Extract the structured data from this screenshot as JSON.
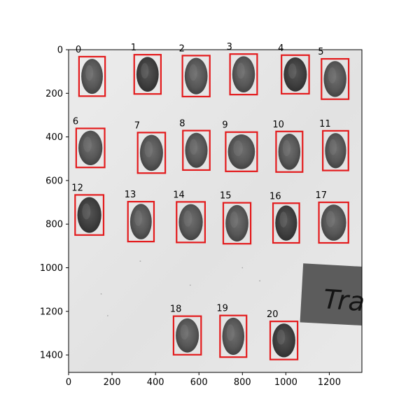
{
  "chart_data": {
    "type": "image-annotation",
    "xlim": [
      0,
      1350
    ],
    "ylim": [
      1480,
      0
    ],
    "x_ticks": [
      0,
      200,
      400,
      600,
      800,
      1000,
      1200
    ],
    "y_ticks": [
      0,
      200,
      400,
      600,
      800,
      1000,
      1200,
      1400
    ],
    "x_tick_labels": [
      "0",
      "200",
      "400",
      "600",
      "800",
      "1000",
      "1200"
    ],
    "y_tick_labels": [
      "0",
      "200",
      "400",
      "600",
      "800",
      "1000",
      "1200",
      "1400"
    ],
    "box_color": "#e31a1c",
    "boxes": [
      {
        "label": "0",
        "x0": 48,
        "y0": 32,
        "x1": 168,
        "y1": 213
      },
      {
        "label": "1",
        "x0": 302,
        "y0": 23,
        "x1": 425,
        "y1": 203
      },
      {
        "label": "2",
        "x0": 524,
        "y0": 27,
        "x1": 650,
        "y1": 215
      },
      {
        "label": "3",
        "x0": 743,
        "y0": 20,
        "x1": 868,
        "y1": 206
      },
      {
        "label": "4",
        "x0": 980,
        "y0": 25,
        "x1": 1107,
        "y1": 202
      },
      {
        "label": "5",
        "x0": 1164,
        "y0": 42,
        "x1": 1289,
        "y1": 227
      },
      {
        "label": "6",
        "x0": 35,
        "y0": 361,
        "x1": 166,
        "y1": 540
      },
      {
        "label": "7",
        "x0": 318,
        "y0": 380,
        "x1": 445,
        "y1": 566
      },
      {
        "label": "8",
        "x0": 526,
        "y0": 371,
        "x1": 650,
        "y1": 552
      },
      {
        "label": "9",
        "x0": 723,
        "y0": 378,
        "x1": 868,
        "y1": 558
      },
      {
        "label": "10",
        "x0": 955,
        "y0": 375,
        "x1": 1077,
        "y1": 561
      },
      {
        "label": "11",
        "x0": 1170,
        "y0": 372,
        "x1": 1288,
        "y1": 554
      },
      {
        "label": "12",
        "x0": 30,
        "y0": 666,
        "x1": 161,
        "y1": 850
      },
      {
        "label": "13",
        "x0": 273,
        "y0": 697,
        "x1": 393,
        "y1": 880
      },
      {
        "label": "14",
        "x0": 497,
        "y0": 698,
        "x1": 628,
        "y1": 884
      },
      {
        "label": "15",
        "x0": 712,
        "y0": 702,
        "x1": 838,
        "y1": 890
      },
      {
        "label": "16",
        "x0": 941,
        "y0": 704,
        "x1": 1062,
        "y1": 886
      },
      {
        "label": "17",
        "x0": 1152,
        "y0": 700,
        "x1": 1288,
        "y1": 886
      },
      {
        "label": "18",
        "x0": 483,
        "y0": 1222,
        "x1": 610,
        "y1": 1399
      },
      {
        "label": "19",
        "x0": 697,
        "y0": 1219,
        "x1": 819,
        "y1": 1410
      },
      {
        "label": "20",
        "x0": 928,
        "y0": 1246,
        "x1": 1054,
        "y1": 1421
      }
    ],
    "photo_label_text": "Tra"
  }
}
